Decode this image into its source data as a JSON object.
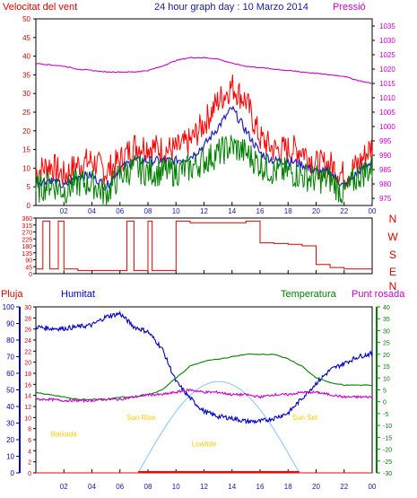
{
  "colors": {
    "gust": "#ff0000",
    "wind_avg": "#2020c0",
    "wind_dir_avg": "#008000",
    "pressure": "#cc00cc",
    "direction": "#dd0000",
    "rain": "#ff0000",
    "humidity": "#0000c0",
    "temperature": "#008000",
    "dewpoint": "#cc00cc",
    "solar": "#99ccff",
    "events": "#ffcc00",
    "frame": "#000000"
  },
  "header": {
    "title": "24 hour graph day : 10 Marzo 2014",
    "left_label": "Velocitat del vent",
    "right_label": "Pressió"
  },
  "bottom_header": {
    "rain_label": "Pluja",
    "humidity_label": "Humitat",
    "temp_label": "Temperatura",
    "dew_label": "Punt rosada"
  },
  "x_ticks": [
    "02",
    "04",
    "06",
    "08",
    "10",
    "12",
    "14",
    "16",
    "18",
    "20",
    "22",
    "00"
  ],
  "compass": [
    "N",
    "W",
    "S",
    "E",
    "N"
  ],
  "chart_data": [
    {
      "type": "line",
      "id": "wind",
      "y_left_ticks": [
        0,
        5,
        10,
        15,
        20,
        25,
        30,
        35,
        40,
        45,
        50
      ],
      "y_right_ticks": [
        975,
        980,
        985,
        990,
        995,
        1000,
        1005,
        1010,
        1015,
        1020,
        1025,
        1030,
        1035
      ],
      "ylim_left": [
        0,
        50
      ],
      "ylim_right": [
        972.5,
        1037.5
      ],
      "x_hours": [
        0,
        1,
        2,
        3,
        4,
        5,
        6,
        7,
        8,
        9,
        10,
        11,
        12,
        13,
        14,
        15,
        16,
        17,
        18,
        19,
        20,
        21,
        22,
        23,
        24
      ],
      "series": [
        {
          "key": "gust",
          "values": [
            9,
            11,
            8,
            11,
            12,
            9,
            12,
            16,
            16,
            15,
            15,
            17,
            22,
            28,
            32,
            28,
            18,
            15,
            15,
            15,
            11,
            11,
            8,
            11,
            16
          ]
        },
        {
          "key": "wind_avg",
          "values": [
            6,
            7,
            5,
            8,
            8,
            5,
            10,
            12,
            12,
            12,
            12,
            13,
            16,
            21,
            26,
            20,
            14,
            12,
            12,
            11,
            9,
            9,
            5,
            9,
            12
          ]
        },
        {
          "key": "wind_dir_avg",
          "values": [
            4,
            6,
            4,
            6,
            6,
            3,
            8,
            10,
            9,
            9,
            9,
            10,
            12,
            14,
            16,
            14,
            11,
            9,
            9,
            8,
            7,
            7,
            3,
            8,
            10
          ]
        },
        {
          "key": "pressure",
          "axis": "right",
          "values": [
            1022,
            1021.5,
            1021,
            1020,
            1019.5,
            1019,
            1019,
            1019,
            1019.5,
            1021,
            1023,
            1024,
            1024,
            1023.5,
            1022,
            1021,
            1020.5,
            1020,
            1019.5,
            1019,
            1018.5,
            1018,
            1017.5,
            1016,
            1015
          ]
        }
      ]
    },
    {
      "type": "scatter",
      "id": "wind-direction",
      "y_ticks": [
        0,
        45,
        90,
        135,
        180,
        225,
        270,
        315,
        360
      ],
      "ylim": [
        0,
        360
      ],
      "x_hours": [
        0,
        0.5,
        1,
        1.6,
        2,
        2.4,
        3,
        4,
        5,
        6,
        6.5,
        7,
        8,
        8.3,
        9,
        10,
        11,
        12,
        13,
        14,
        15,
        15.8,
        16,
        17,
        18,
        19,
        20,
        21,
        22,
        23,
        24
      ],
      "values": [
        30,
        340,
        30,
        340,
        30,
        30,
        20,
        20,
        20,
        20,
        340,
        20,
        340,
        20,
        20,
        340,
        330,
        330,
        330,
        330,
        340,
        340,
        200,
        195,
        190,
        180,
        60,
        40,
        30,
        30,
        30
      ]
    },
    {
      "type": "line",
      "id": "humidity-temp",
      "ylim_rain": [
        0,
        30
      ],
      "y_rain_ticks": [
        0,
        2,
        4,
        6,
        8,
        10,
        12,
        14,
        16,
        18,
        20,
        22,
        24,
        26,
        28,
        30
      ],
      "ylim_humidity": [
        0,
        100
      ],
      "y_humidity_ticks": [
        0,
        10,
        20,
        30,
        40,
        50,
        60,
        70,
        80,
        90,
        100
      ],
      "ylim_temp": [
        -30,
        40
      ],
      "y_temp_ticks": [
        -30,
        -25,
        -20,
        -15,
        -10,
        -5,
        0,
        5,
        10,
        15,
        20,
        25,
        30,
        35,
        40
      ],
      "x_hours": [
        0,
        1,
        2,
        3,
        4,
        5,
        6,
        7,
        8,
        9,
        10,
        11,
        12,
        13,
        14,
        15,
        16,
        17,
        18,
        19,
        20,
        21,
        22,
        23,
        24
      ],
      "series": [
        {
          "key": "humidity",
          "axis": "humidity",
          "values": [
            88,
            87,
            87,
            88,
            89,
            94,
            96,
            88,
            85,
            75,
            55,
            45,
            37,
            34,
            33,
            31,
            31,
            33,
            36,
            45,
            54,
            62,
            66,
            70,
            72
          ]
        },
        {
          "key": "temperature",
          "axis": "temp",
          "values": [
            4,
            3,
            2,
            1,
            1,
            1,
            2,
            2,
            3,
            5,
            10,
            15,
            17,
            18,
            19,
            20,
            20,
            20,
            18,
            15,
            10,
            8,
            7,
            7,
            7
          ]
        },
        {
          "key": "dewpoint",
          "axis": "temp",
          "values": [
            1,
            1,
            0.5,
            0.5,
            0.5,
            1,
            1,
            2,
            3,
            3,
            4,
            5,
            4,
            4,
            3,
            3,
            2,
            3,
            3,
            4,
            4,
            3,
            2,
            2,
            2
          ]
        },
        {
          "key": "rain",
          "axis": "rain",
          "values": [
            0,
            0,
            0,
            0,
            0,
            0,
            0,
            0,
            0,
            0,
            0,
            0,
            0,
            0,
            0,
            0,
            0,
            0,
            0,
            0,
            0,
            0,
            0,
            0,
            0
          ]
        }
      ],
      "annotations": [
        {
          "label": "Baixada",
          "hour": 2.0,
          "humidity": 22
        },
        {
          "label": "Sun Rise",
          "hour": 7.5,
          "humidity": 32
        },
        {
          "label": "Lowtide",
          "hour": 12.0,
          "humidity": 16
        },
        {
          "label": "Sun Set",
          "hour": 19.2,
          "humidity": 32
        }
      ]
    }
  ]
}
